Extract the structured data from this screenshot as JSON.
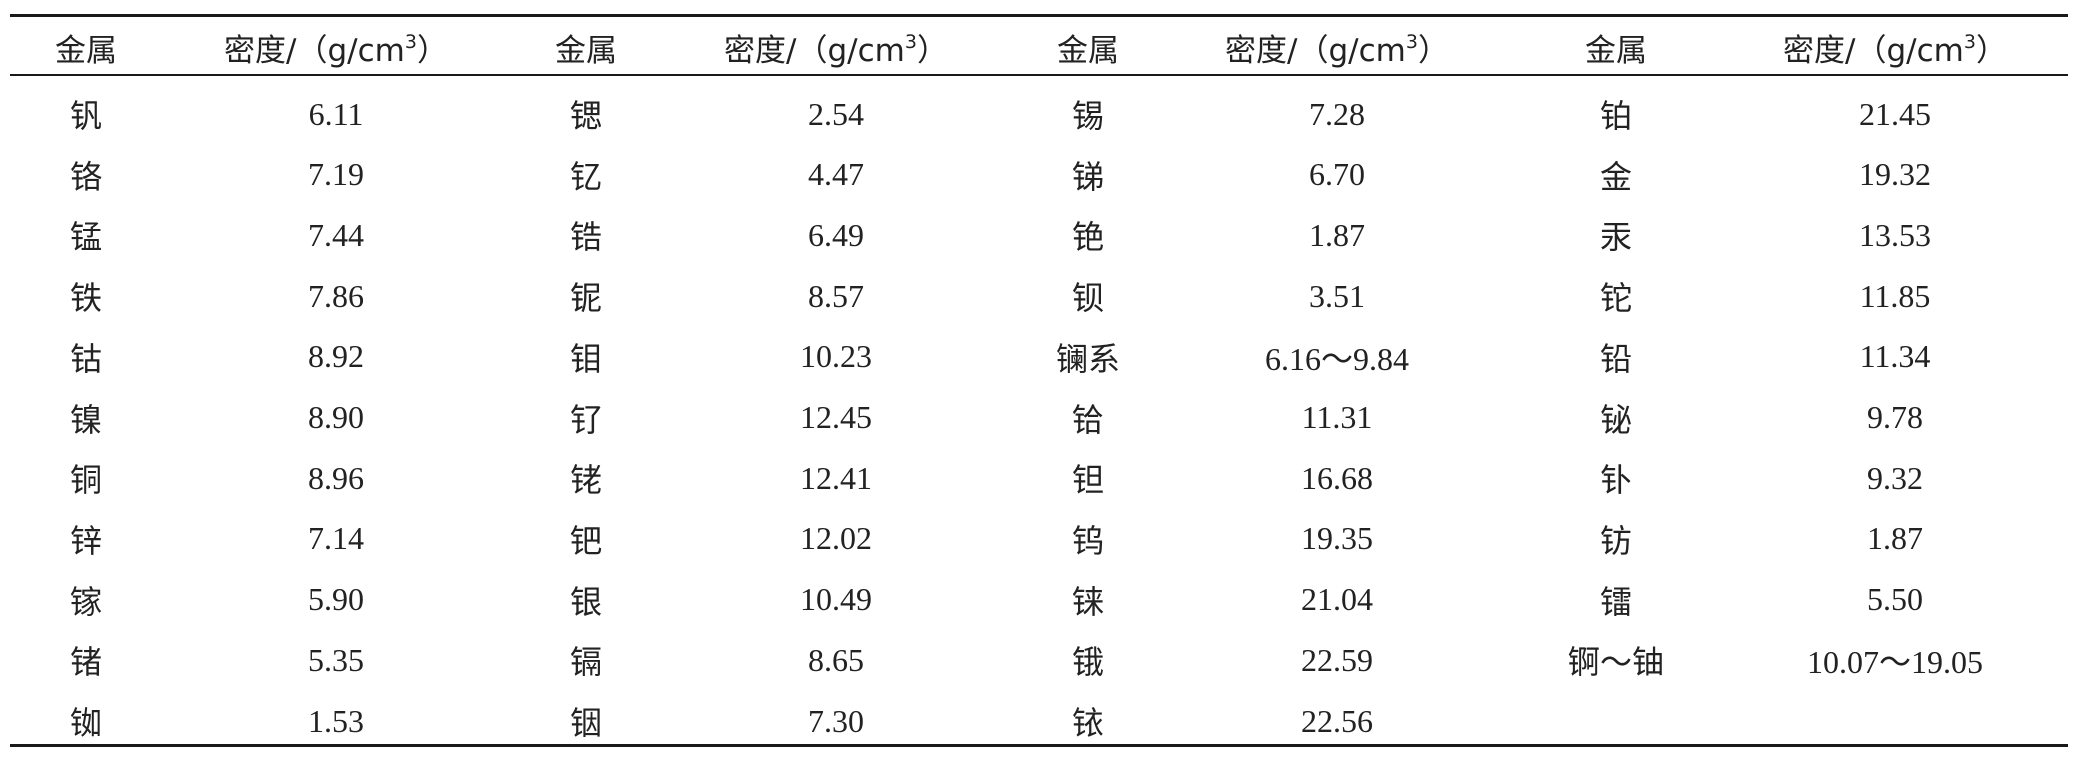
{
  "header": {
    "metal": "金属",
    "density_prefix": "密度/（g/cm",
    "density_sup": "3",
    "density_suffix": "）"
  },
  "groups": [
    {
      "rows": [
        {
          "metal": "钒",
          "density": "6.11"
        },
        {
          "metal": "铬",
          "density": "7.19"
        },
        {
          "metal": "锰",
          "density": "7.44"
        },
        {
          "metal": "铁",
          "density": "7.86"
        },
        {
          "metal": "钴",
          "density": "8.92"
        },
        {
          "metal": "镍",
          "density": "8.90"
        },
        {
          "metal": "铜",
          "density": "8.96"
        },
        {
          "metal": "锌",
          "density": "7.14"
        },
        {
          "metal": "镓",
          "density": "5.90"
        },
        {
          "metal": "锗",
          "density": "5.35"
        },
        {
          "metal": "铷",
          "density": "1.53"
        }
      ]
    },
    {
      "rows": [
        {
          "metal": "锶",
          "density": "2.54"
        },
        {
          "metal": "钇",
          "density": "4.47"
        },
        {
          "metal": "锆",
          "density": "6.49"
        },
        {
          "metal": "铌",
          "density": "8.57"
        },
        {
          "metal": "钼",
          "density": "10.23"
        },
        {
          "metal": "钌",
          "density": "12.45"
        },
        {
          "metal": "铑",
          "density": "12.41"
        },
        {
          "metal": "钯",
          "density": "12.02"
        },
        {
          "metal": "银",
          "density": "10.49"
        },
        {
          "metal": "镉",
          "density": "8.65"
        },
        {
          "metal": "铟",
          "density": "7.30"
        }
      ]
    },
    {
      "rows": [
        {
          "metal": "锡",
          "density": "7.28"
        },
        {
          "metal": "锑",
          "density": "6.70"
        },
        {
          "metal": "铯",
          "density": "1.87"
        },
        {
          "metal": "钡",
          "density": "3.51"
        },
        {
          "metal": "镧系",
          "density": "6.16～9.84"
        },
        {
          "metal": "铪",
          "density": "11.31"
        },
        {
          "metal": "钽",
          "density": "16.68"
        },
        {
          "metal": "钨",
          "density": "19.35"
        },
        {
          "metal": "铼",
          "density": "21.04"
        },
        {
          "metal": "锇",
          "density": "22.59"
        },
        {
          "metal": "铱",
          "density": "22.56"
        }
      ]
    },
    {
      "rows": [
        {
          "metal": "铂",
          "density": "21.45"
        },
        {
          "metal": "金",
          "density": "19.32"
        },
        {
          "metal": "汞",
          "density": "13.53"
        },
        {
          "metal": "铊",
          "density": "11.85"
        },
        {
          "metal": "铅",
          "density": "11.34"
        },
        {
          "metal": "铋",
          "density": "9.78"
        },
        {
          "metal": "钋",
          "density": "9.32"
        },
        {
          "metal": "钫",
          "density": "1.87"
        },
        {
          "metal": "镭",
          "density": "5.50"
        },
        {
          "metal": "锕～铀",
          "density": "10.07～19.05"
        },
        {
          "metal": "",
          "density": ""
        }
      ]
    }
  ]
}
